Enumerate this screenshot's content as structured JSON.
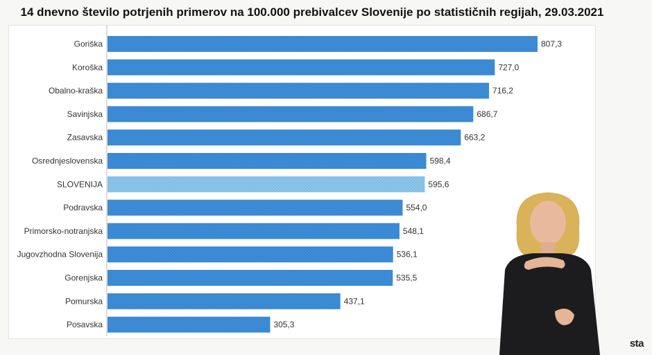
{
  "chart_data": {
    "type": "bar",
    "orientation": "horizontal",
    "title": "14 dnevno število potrjenih primerov na 100.000 prebivalcev Slovenije po statističnih regijah, 29.03.2021",
    "categories": [
      "Goriška",
      "Koroška",
      "Obalno-kraška",
      "Savinjska",
      "Zasavska",
      "Osrednjeslovenska",
      "SLOVENIJA",
      "Podravska",
      "Primorsko-notranjska",
      "Jugovzhodna Slovenija",
      "Gorenjska",
      "Pomurska",
      "Posavska"
    ],
    "values": [
      807.3,
      727.0,
      716.2,
      686.7,
      663.2,
      598.4,
      595.6,
      554.0,
      548.1,
      536.1,
      535.5,
      437.1,
      305.3
    ],
    "value_labels": [
      "807,3",
      "727,0",
      "716,2",
      "686,7",
      "663,2",
      "598,4",
      "595,6",
      "554,0",
      "548,1",
      "536,1",
      "535,5",
      "437,1",
      "305,3"
    ],
    "highlight_category": "SLOVENIJA",
    "xlim": [
      0,
      807.3
    ],
    "grid": false,
    "legend": "none"
  },
  "colors": {
    "bar": "#3f8fd9",
    "bar_dark": "#2c74bd",
    "highlight": "#8ec6ea",
    "highlight_dark": "#6aaed9"
  },
  "overlay": {
    "logo_text": "sta"
  }
}
